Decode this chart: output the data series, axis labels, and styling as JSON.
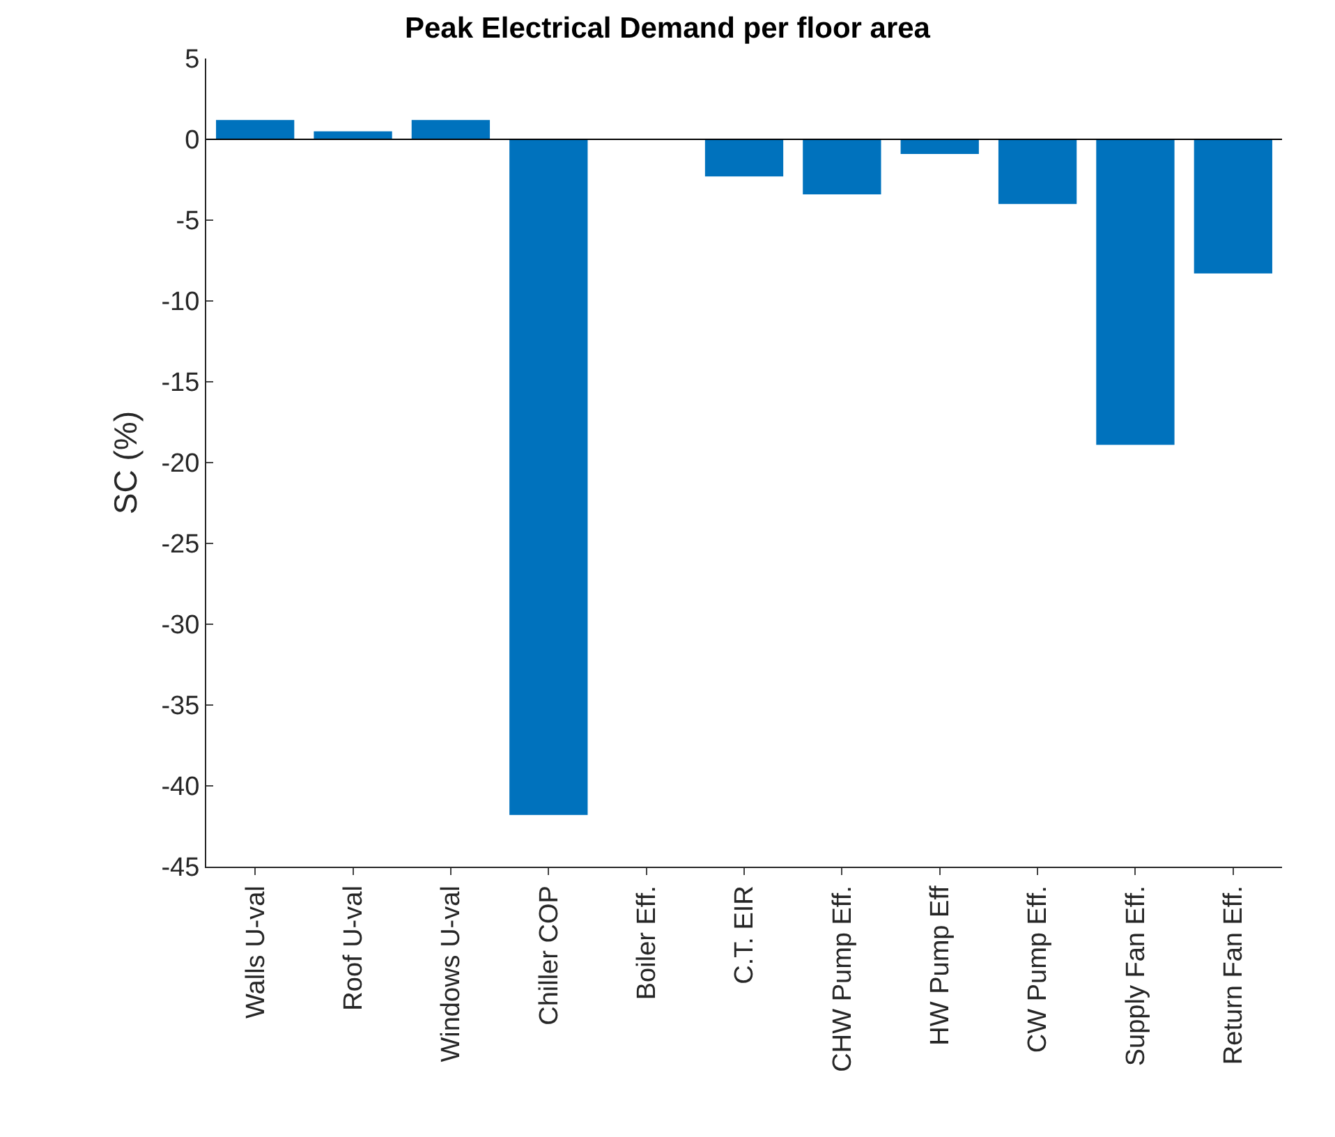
{
  "chart_data": {
    "type": "bar",
    "title": "Peak Electrical Demand per floor area",
    "ylabel": "SC (%)",
    "categories": [
      "Walls U-val",
      "Roof U-val",
      "Windows U-val",
      "Chiller COP",
      "Boiler Eff.",
      "C.T. EIR",
      "CHW Pump Eff.",
      "HW Pump Eff",
      "CW Pump Eff.",
      "Supply Fan Eff.",
      "Return Fan Eff."
    ],
    "values": [
      1.2,
      0.5,
      1.2,
      -41.8,
      0,
      -2.3,
      -3.4,
      -0.9,
      -4.0,
      -18.9,
      -8.3
    ],
    "color": "#0072bd",
    "ylim": [
      -45,
      5
    ],
    "yticks": [
      -45,
      -40,
      -35,
      -30,
      -25,
      -20,
      -15,
      -10,
      -5,
      0,
      5
    ],
    "ref_lines": [
      {
        "axis": "y",
        "value": 0,
        "color": "#000000"
      }
    ],
    "grid": false
  }
}
